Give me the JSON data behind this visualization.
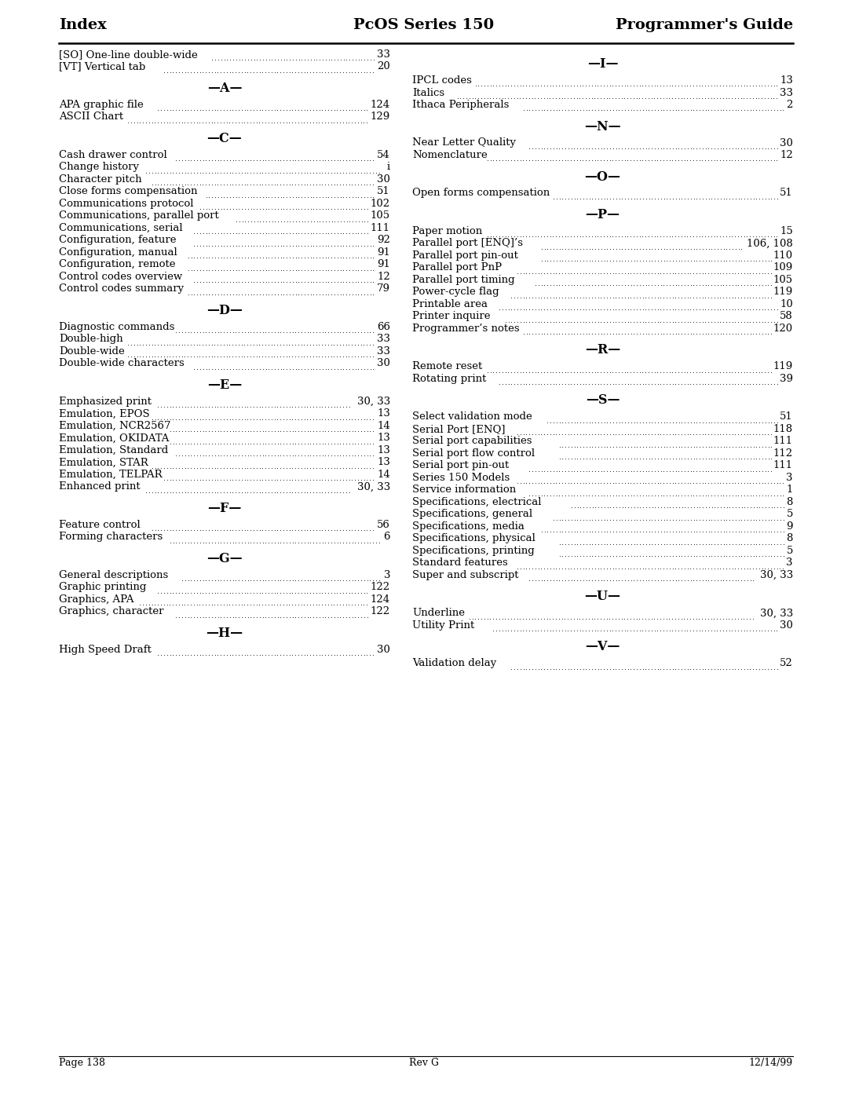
{
  "title_left": "Index",
  "title_center": "PcOS Series 150",
  "title_right": "Programmer's Guide",
  "footer_left": "Page 138",
  "footer_center": "Rev G",
  "footer_right": "12/14/99",
  "left_column": {
    "pre_sections": [
      {
        "text": "[SO] One-line double-wide",
        "page": "33"
      },
      {
        "text": "[VT] Vertical tab",
        "page": "20"
      }
    ],
    "sections": [
      {
        "heading": "—A—",
        "entries": [
          {
            "text": "APA graphic file",
            "page": "124"
          },
          {
            "text": "ASCII Chart",
            "page": "129"
          }
        ]
      },
      {
        "heading": "—C—",
        "entries": [
          {
            "text": "Cash drawer control",
            "page": "54"
          },
          {
            "text": "Change history",
            "page": "i"
          },
          {
            "text": "Character pitch",
            "page": "30"
          },
          {
            "text": "Close forms compensation",
            "page": "51"
          },
          {
            "text": "Communications protocol",
            "page": "102"
          },
          {
            "text": "Communications, parallel port",
            "page": "105"
          },
          {
            "text": "Communications, serial",
            "page": "111"
          },
          {
            "text": "Configuration, feature",
            "page": "92"
          },
          {
            "text": "Configuration, manual",
            "page": "91"
          },
          {
            "text": "Configuration, remote",
            "page": "91"
          },
          {
            "text": "Control codes overview",
            "page": "12"
          },
          {
            "text": "Control codes summary",
            "page": "79"
          }
        ]
      },
      {
        "heading": "—D—",
        "entries": [
          {
            "text": "Diagnostic commands",
            "page": "66"
          },
          {
            "text": "Double-high",
            "page": "33"
          },
          {
            "text": "Double-wide",
            "page": "33"
          },
          {
            "text": "Double-wide characters",
            "page": "30"
          }
        ]
      },
      {
        "heading": "—E—",
        "entries": [
          {
            "text": "Emphasized print",
            "page": "30, 33"
          },
          {
            "text": "Emulation, EPOS",
            "page": "13"
          },
          {
            "text": "Emulation, NCR2567",
            "page": "14"
          },
          {
            "text": "Emulation, OKIDATA",
            "page": "13"
          },
          {
            "text": "Emulation, Standard",
            "page": "13"
          },
          {
            "text": "Emulation, STAR",
            "page": "13"
          },
          {
            "text": "Emulation, TELPAR",
            "page": "14"
          },
          {
            "text": "Enhanced print",
            "page": "30, 33"
          }
        ]
      },
      {
        "heading": "—F—",
        "entries": [
          {
            "text": "Feature control",
            "page": "56"
          },
          {
            "text": "Forming characters",
            "page": "6"
          }
        ]
      },
      {
        "heading": "—G—",
        "entries": [
          {
            "text": "General descriptions",
            "page": "3"
          },
          {
            "text": "Graphic printing",
            "page": "122"
          },
          {
            "text": "Graphics, APA",
            "page": "124"
          },
          {
            "text": "Graphics, character",
            "page": "122"
          }
        ]
      },
      {
        "heading": "—H—",
        "entries": [
          {
            "text": "High Speed Draft",
            "page": "30"
          }
        ]
      }
    ]
  },
  "right_column": {
    "sections": [
      {
        "heading": "—I—",
        "entries": [
          {
            "text": "IPCL codes",
            "page": "13"
          },
          {
            "text": "Italics",
            "page": "33"
          },
          {
            "text": "Ithaca Peripherals",
            "page": "2"
          }
        ]
      },
      {
        "heading": "—N—",
        "entries": [
          {
            "text": "Near Letter Quality",
            "page": "30"
          },
          {
            "text": "Nomenclature",
            "page": "12"
          }
        ]
      },
      {
        "heading": "—O—",
        "entries": [
          {
            "text": "Open forms compensation",
            "page": "51"
          }
        ]
      },
      {
        "heading": "—P—",
        "entries": [
          {
            "text": "Paper motion",
            "page": "15"
          },
          {
            "text": "Parallel port [ENQ]’s",
            "page": "106, 108"
          },
          {
            "text": "Parallel port pin-out",
            "page": "110"
          },
          {
            "text": "Parallel port PnP",
            "page": "109"
          },
          {
            "text": "Parallel port timing",
            "page": "105"
          },
          {
            "text": "Power-cycle flag",
            "page": "119"
          },
          {
            "text": "Printable area",
            "page": "10"
          },
          {
            "text": "Printer inquire",
            "page": "58"
          },
          {
            "text": "Programmer’s notes",
            "page": "120"
          }
        ]
      },
      {
        "heading": "—R—",
        "entries": [
          {
            "text": "Remote reset",
            "page": "119"
          },
          {
            "text": "Rotating print",
            "page": "39"
          }
        ]
      },
      {
        "heading": "—S—",
        "entries": [
          {
            "text": "Select validation mode",
            "page": "51"
          },
          {
            "text": "Serial Port [ENQ]",
            "page": "118"
          },
          {
            "text": "Serial port capabilities",
            "page": "111"
          },
          {
            "text": "Serial port flow control",
            "page": "112"
          },
          {
            "text": "Serial port pin-out",
            "page": "111"
          },
          {
            "text": "Series 150 Models",
            "page": "3"
          },
          {
            "text": "Service information",
            "page": "1"
          },
          {
            "text": "Specifications, electrical",
            "page": "8"
          },
          {
            "text": "Specifications, general",
            "page": "5"
          },
          {
            "text": "Specifications, media",
            "page": "9"
          },
          {
            "text": "Specifications, physical",
            "page": "8"
          },
          {
            "text": "Specifications, printing",
            "page": "5"
          },
          {
            "text": "Standard features",
            "page": "3"
          },
          {
            "text": "Super and subscript",
            "page": "30, 33"
          }
        ]
      },
      {
        "heading": "—U—",
        "entries": [
          {
            "text": "Underline",
            "page": "30, 33"
          },
          {
            "text": "Utility Print",
            "page": "30"
          }
        ]
      },
      {
        "heading": "—V—",
        "entries": [
          {
            "text": "Validation delay",
            "page": "52"
          }
        ]
      }
    ]
  }
}
